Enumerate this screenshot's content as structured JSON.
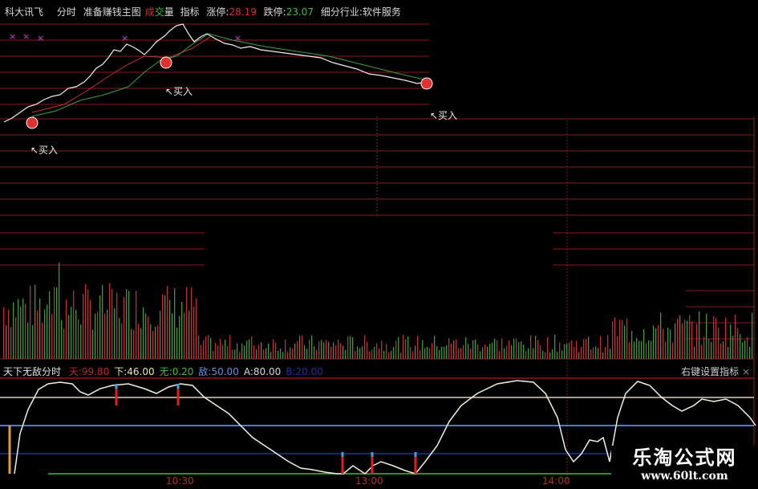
{
  "header": {
    "stock_name": "科大讯飞",
    "mode": "分时",
    "main_chart": "准备赚钱主图",
    "volume_a": "成",
    "volume_b": "交",
    "volume_c": "量",
    "indicator": "指标",
    "limit_up_label": "涨停:",
    "limit_up_value": "28.19",
    "limit_down_label": "跌停:",
    "limit_down_value": "23.07",
    "industry": "细分行业:软件服务"
  },
  "markers": {
    "buy_label": "↖买入"
  },
  "indicator_panel": {
    "name": "天下无敌分时",
    "items": [
      {
        "label": "天:",
        "value": "99.80",
        "color": "#c02828"
      },
      {
        "label": "下:",
        "value": "46.00",
        "color": "#e8e8a0"
      },
      {
        "label": "无:",
        "value": "0.20",
        "color": "#3cbf3c"
      },
      {
        "label": "敌:",
        "value": "50.00",
        "color": "#6a8fd8"
      },
      {
        "label": "A:",
        "value": "80.00",
        "color": "#d8d8d8"
      },
      {
        "label": "B:",
        "value": "20.00",
        "color": "#2030a0"
      }
    ],
    "right_menu": "右键设置指标",
    "close": "×"
  },
  "time_axis": [
    "10:30",
    "13:00",
    "14:00"
  ],
  "watermark": {
    "title": "乐淘公式网",
    "url": "www.60lt.com"
  },
  "colors": {
    "grid": "#8a1a1a",
    "price": "#f0f0f0",
    "ma_red": "#c03030",
    "ma_green": "#3aa03a",
    "up_bar": "#c03030",
    "down_bar": "#3a9a3a",
    "line_blue": "#4a7ad8"
  }
}
